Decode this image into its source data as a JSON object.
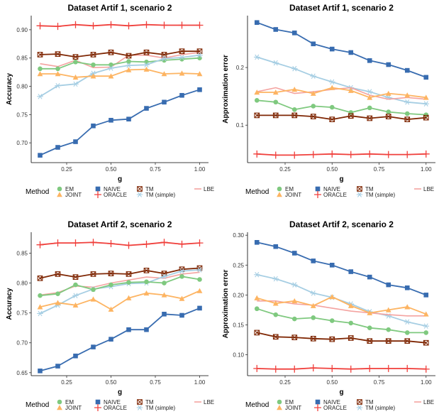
{
  "legend": {
    "title": "Method",
    "items": [
      {
        "key": "EM",
        "label": "EM",
        "color": "#7fc97f",
        "marker": "circle"
      },
      {
        "key": "JOINT",
        "label": "JOINT",
        "color": "#fdb462",
        "marker": "triangle"
      },
      {
        "key": "NAIVE",
        "label": "NAIVE",
        "color": "#386cb0",
        "marker": "square"
      },
      {
        "key": "ORACLE",
        "label": "ORACLE",
        "color": "#f0403c",
        "marker": "plus"
      },
      {
        "key": "TM",
        "label": "TM",
        "color": "#7f2704",
        "marker": "boxx"
      },
      {
        "key": "TMS",
        "label": "TM (simple)",
        "color": "#a6cee3",
        "marker": "asterisk"
      },
      {
        "key": "LBE",
        "label": "LBE",
        "color": "#f4a3a0",
        "marker": "none"
      }
    ]
  },
  "chart_data": [
    {
      "type": "line",
      "title": "Dataset Artif 1, scenario 2",
      "xlabel": "g",
      "ylabel": "Accuracy",
      "xlim": [
        0.05,
        1.05
      ],
      "ylim": [
        0.665,
        0.925
      ],
      "xticks": [
        0.25,
        0.5,
        0.75,
        1.0
      ],
      "xtick_labels": [
        "0.25",
        "0.50",
        "0.75",
        "1.00"
      ],
      "yticks": [
        0.7,
        0.75,
        0.8,
        0.85,
        0.9
      ],
      "ytick_labels": [
        "0.70",
        "0.75",
        "0.80",
        "0.85",
        "0.90"
      ],
      "x": [
        0.1,
        0.2,
        0.3,
        0.4,
        0.5,
        0.6,
        0.7,
        0.8,
        0.9,
        1.0
      ],
      "series": [
        {
          "key": "ORACLE",
          "name": "ORACLE",
          "values": [
            0.907,
            0.906,
            0.909,
            0.907,
            0.909,
            0.907,
            0.909,
            0.908,
            0.908,
            0.908
          ]
        },
        {
          "key": "LBE",
          "name": "LBE",
          "values": [
            0.84,
            0.835,
            0.846,
            0.833,
            0.834,
            0.855,
            0.855,
            0.85,
            0.856,
            0.86
          ]
        },
        {
          "key": "TM",
          "name": "TM",
          "values": [
            0.856,
            0.857,
            0.852,
            0.856,
            0.86,
            0.854,
            0.86,
            0.856,
            0.862,
            0.862
          ]
        },
        {
          "key": "EM",
          "name": "EM",
          "values": [
            0.831,
            0.831,
            0.843,
            0.838,
            0.838,
            0.844,
            0.843,
            0.846,
            0.848,
            0.85
          ]
        },
        {
          "key": "TMS",
          "name": "TM (simple)",
          "values": [
            0.782,
            0.801,
            0.804,
            0.823,
            0.832,
            0.837,
            0.838,
            0.849,
            0.851,
            0.855
          ]
        },
        {
          "key": "JOINT",
          "name": "JOINT",
          "values": [
            0.822,
            0.822,
            0.816,
            0.818,
            0.818,
            0.829,
            0.83,
            0.822,
            0.823,
            0.822
          ]
        },
        {
          "key": "NAIVE",
          "name": "NAIVE",
          "values": [
            0.678,
            0.692,
            0.702,
            0.73,
            0.74,
            0.742,
            0.761,
            0.772,
            0.784,
            0.794
          ]
        }
      ]
    },
    {
      "type": "line",
      "title": "Dataset Artif 1, scenario 2",
      "xlabel": "g",
      "ylabel": "Approximation error",
      "xlim": [
        0.05,
        1.05
      ],
      "ylim": [
        0.035,
        0.29
      ],
      "xticks": [
        0.25,
        0.5,
        0.75,
        1.0
      ],
      "xtick_labels": [
        "0.25",
        "0.50",
        "0.75",
        "1.00"
      ],
      "yticks": [
        0.1,
        0.2
      ],
      "ytick_labels": [
        "0.1",
        "0.2"
      ],
      "x": [
        0.1,
        0.2,
        0.3,
        0.4,
        0.5,
        0.6,
        0.7,
        0.8,
        0.9,
        1.0
      ],
      "series": [
        {
          "key": "NAIVE",
          "name": "NAIVE",
          "values": [
            0.278,
            0.266,
            0.26,
            0.241,
            0.232,
            0.226,
            0.212,
            0.205,
            0.195,
            0.183
          ]
        },
        {
          "key": "TMS",
          "name": "TM (simple)",
          "values": [
            0.218,
            0.208,
            0.198,
            0.185,
            0.175,
            0.165,
            0.158,
            0.148,
            0.14,
            0.137
          ]
        },
        {
          "key": "LBE",
          "name": "LBE",
          "values": [
            0.158,
            0.165,
            0.155,
            0.158,
            0.162,
            0.165,
            0.152,
            0.145,
            0.148,
            0.145
          ]
        },
        {
          "key": "JOINT",
          "name": "JOINT",
          "values": [
            0.157,
            0.157,
            0.162,
            0.155,
            0.165,
            0.16,
            0.148,
            0.155,
            0.152,
            0.148
          ]
        },
        {
          "key": "EM",
          "name": "EM",
          "values": [
            0.143,
            0.14,
            0.127,
            0.133,
            0.131,
            0.122,
            0.13,
            0.123,
            0.12,
            0.118
          ]
        },
        {
          "key": "TM",
          "name": "TM",
          "values": [
            0.117,
            0.117,
            0.117,
            0.115,
            0.11,
            0.116,
            0.112,
            0.115,
            0.11,
            0.113
          ]
        },
        {
          "key": "ORACLE",
          "name": "ORACLE",
          "values": [
            0.05,
            0.048,
            0.048,
            0.049,
            0.05,
            0.049,
            0.05,
            0.049,
            0.049,
            0.05
          ]
        }
      ]
    },
    {
      "type": "line",
      "title": "Dataset Artif 2, scenario 2",
      "xlabel": "g",
      "ylabel": "Accuracy",
      "xlim": [
        0.05,
        1.05
      ],
      "ylim": [
        0.645,
        0.885
      ],
      "xticks": [
        0.25,
        0.5,
        0.75,
        1.0
      ],
      "xtick_labels": [
        "0.25",
        "0.50",
        "0.75",
        "1.00"
      ],
      "yticks": [
        0.65,
        0.7,
        0.75,
        0.8,
        0.85
      ],
      "ytick_labels": [
        "0.65",
        "0.70",
        "0.75",
        "0.80",
        "0.85"
      ],
      "x": [
        0.1,
        0.2,
        0.3,
        0.4,
        0.5,
        0.6,
        0.7,
        0.8,
        0.9,
        1.0
      ],
      "series": [
        {
          "key": "ORACLE",
          "name": "ORACLE",
          "values": [
            0.864,
            0.867,
            0.867,
            0.868,
            0.866,
            0.863,
            0.865,
            0.868,
            0.865,
            0.867
          ]
        },
        {
          "key": "TM",
          "name": "TM",
          "values": [
            0.808,
            0.815,
            0.81,
            0.815,
            0.816,
            0.815,
            0.821,
            0.816,
            0.823,
            0.825
          ]
        },
        {
          "key": "LBE",
          "name": "LBE",
          "values": [
            0.78,
            0.784,
            0.795,
            0.793,
            0.8,
            0.805,
            0.81,
            0.808,
            0.815,
            0.818
          ]
        },
        {
          "key": "TMS",
          "name": "TM (simple)",
          "values": [
            0.749,
            0.763,
            0.779,
            0.79,
            0.794,
            0.799,
            0.8,
            0.811,
            0.82,
            0.822
          ]
        },
        {
          "key": "EM",
          "name": "EM",
          "values": [
            0.779,
            0.782,
            0.797,
            0.789,
            0.797,
            0.801,
            0.802,
            0.8,
            0.811,
            0.806
          ]
        },
        {
          "key": "JOINT",
          "name": "JOINT",
          "values": [
            0.76,
            0.767,
            0.763,
            0.773,
            0.756,
            0.775,
            0.783,
            0.78,
            0.774,
            0.787
          ]
        },
        {
          "key": "NAIVE",
          "name": "NAIVE",
          "values": [
            0.653,
            0.661,
            0.678,
            0.693,
            0.706,
            0.722,
            0.722,
            0.748,
            0.746,
            0.758
          ]
        }
      ]
    },
    {
      "type": "line",
      "title": "Dataset Artif 2, scenario 2",
      "xlabel": "g",
      "ylabel": "Approximation error",
      "xlim": [
        0.05,
        1.05
      ],
      "ylim": [
        0.065,
        0.305
      ],
      "xticks": [
        0.25,
        0.5,
        0.75,
        1.0
      ],
      "xtick_labels": [
        "0.25",
        "0.50",
        "0.75",
        "1.00"
      ],
      "yticks": [
        0.1,
        0.15,
        0.2,
        0.25,
        0.3
      ],
      "ytick_labels": [
        "0.10",
        "0.15",
        "0.20",
        "0.25",
        "0.30"
      ],
      "x": [
        0.1,
        0.2,
        0.3,
        0.4,
        0.5,
        0.6,
        0.7,
        0.8,
        0.9,
        1.0
      ],
      "series": [
        {
          "key": "NAIVE",
          "name": "NAIVE",
          "values": [
            0.288,
            0.281,
            0.27,
            0.257,
            0.25,
            0.239,
            0.23,
            0.217,
            0.212,
            0.2
          ]
        },
        {
          "key": "TMS",
          "name": "TM (simple)",
          "values": [
            0.234,
            0.227,
            0.217,
            0.203,
            0.196,
            0.185,
            0.172,
            0.165,
            0.155,
            0.148
          ]
        },
        {
          "key": "LBE",
          "name": "LBE",
          "values": [
            0.19,
            0.19,
            0.185,
            0.183,
            0.178,
            0.173,
            0.17,
            0.167,
            0.165,
            0.165
          ]
        },
        {
          "key": "JOINT",
          "name": "JOINT",
          "values": [
            0.195,
            0.186,
            0.19,
            0.182,
            0.197,
            0.182,
            0.17,
            0.175,
            0.18,
            0.168
          ]
        },
        {
          "key": "EM",
          "name": "EM",
          "values": [
            0.177,
            0.167,
            0.16,
            0.162,
            0.157,
            0.153,
            0.145,
            0.142,
            0.137,
            0.137
          ]
        },
        {
          "key": "TM",
          "name": "TM",
          "values": [
            0.137,
            0.13,
            0.129,
            0.127,
            0.126,
            0.128,
            0.123,
            0.123,
            0.123,
            0.12
          ]
        },
        {
          "key": "ORACLE",
          "name": "ORACLE",
          "values": [
            0.077,
            0.076,
            0.076,
            0.078,
            0.077,
            0.076,
            0.077,
            0.077,
            0.077,
            0.076
          ]
        }
      ]
    }
  ]
}
